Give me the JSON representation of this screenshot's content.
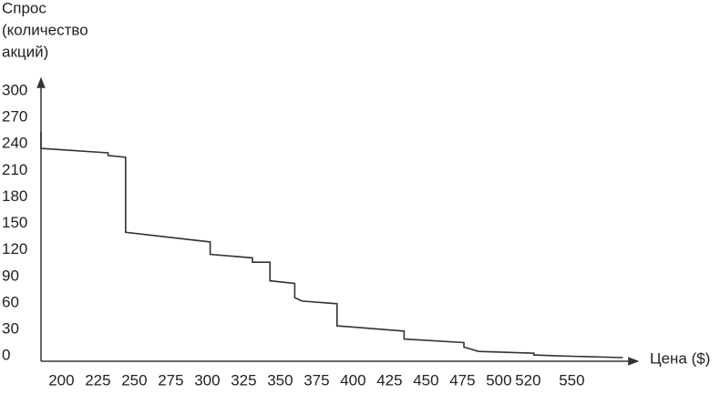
{
  "chart_data": {
    "type": "line",
    "ylabel": [
      "Спрос",
      "(количество",
      "акций)"
    ],
    "xlabel": "Цена ($)",
    "color": "#333333",
    "xlim": [
      186,
      594
    ],
    "ylim": [
      -6,
      312
    ],
    "xticks": [
      200,
      225,
      250,
      275,
      300,
      325,
      350,
      375,
      400,
      425,
      450,
      475,
      500,
      520,
      550
    ],
    "yticks": [
      0,
      30,
      60,
      90,
      120,
      150,
      180,
      210,
      240,
      270,
      300
    ],
    "x": [
      186,
      186,
      232,
      232,
      244,
      244,
      302,
      302,
      331,
      331,
      343,
      343,
      360,
      360,
      365,
      389,
      389,
      435,
      435,
      476,
      476,
      486,
      524,
      524,
      540,
      585
    ],
    "y": [
      254,
      235,
      230,
      227,
      225,
      140,
      129,
      115,
      111,
      106,
      106,
      85,
      82,
      66,
      62,
      59,
      34,
      28,
      19,
      15,
      10,
      5,
      3,
      1,
      0,
      -2
    ]
  }
}
